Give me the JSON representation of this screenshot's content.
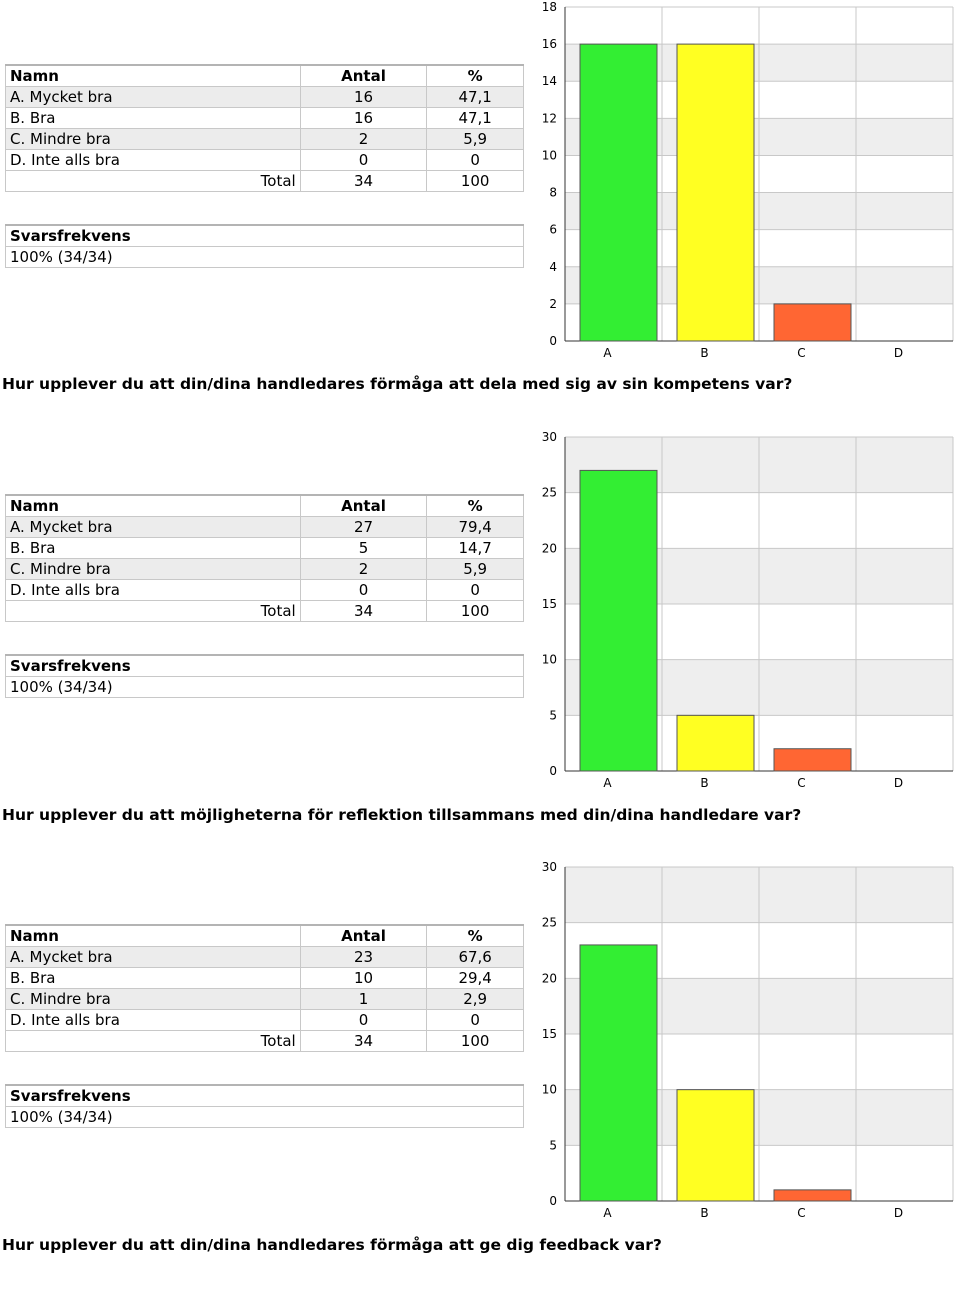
{
  "headers": {
    "name": "Namn",
    "count": "Antal",
    "percent": "%"
  },
  "total_label": "Total",
  "freq_label": "Svarsfrekvens",
  "blocks": [
    {
      "rows": [
        {
          "name": "A. Mycket bra",
          "count": "16",
          "percent": "47,1"
        },
        {
          "name": "B. Bra",
          "count": "16",
          "percent": "47,1"
        },
        {
          "name": "C. Mindre bra",
          "count": "2",
          "percent": "5,9"
        },
        {
          "name": "D. Inte alls bra",
          "count": "0",
          "percent": "0"
        }
      ],
      "total": {
        "count": "34",
        "percent": "100"
      },
      "freq_value": "100% (34/34)",
      "question": "Hur upplever du att din/dina handledares förmåga att dela med sig av sin kompetens var?"
    },
    {
      "rows": [
        {
          "name": "A. Mycket bra",
          "count": "27",
          "percent": "79,4"
        },
        {
          "name": "B. Bra",
          "count": "5",
          "percent": "14,7"
        },
        {
          "name": "C. Mindre bra",
          "count": "2",
          "percent": "5,9"
        },
        {
          "name": "D. Inte alls bra",
          "count": "0",
          "percent": "0"
        }
      ],
      "total": {
        "count": "34",
        "percent": "100"
      },
      "freq_value": "100% (34/34)",
      "question": "Hur upplever du att möjligheterna för reflektion tillsammans med din/dina handledare var?"
    },
    {
      "rows": [
        {
          "name": "A. Mycket bra",
          "count": "23",
          "percent": "67,6"
        },
        {
          "name": "B. Bra",
          "count": "10",
          "percent": "29,4"
        },
        {
          "name": "C. Mindre bra",
          "count": "1",
          "percent": "2,9"
        },
        {
          "name": "D. Inte alls bra",
          "count": "0",
          "percent": "0"
        }
      ],
      "total": {
        "count": "34",
        "percent": "100"
      },
      "freq_value": "100% (34/34)",
      "question": "Hur upplever du att din/dina handledares förmåga att ge dig feedback var?"
    }
  ],
  "colors": {
    "A": "#33ee33",
    "B": "#ffff22",
    "C": "#ff6633",
    "D": "#ffffff"
  },
  "chart_data": [
    {
      "type": "bar",
      "categories": [
        "A",
        "B",
        "C",
        "D"
      ],
      "values": [
        16,
        16,
        2,
        0
      ],
      "ylim": [
        0,
        18
      ],
      "yticks": [
        0,
        2,
        4,
        6,
        8,
        10,
        12,
        14,
        16,
        18
      ],
      "grid": true,
      "legend": "none"
    },
    {
      "type": "bar",
      "categories": [
        "A",
        "B",
        "C",
        "D"
      ],
      "values": [
        27,
        5,
        2,
        0
      ],
      "ylim": [
        0,
        30
      ],
      "yticks": [
        0,
        5,
        10,
        15,
        20,
        25,
        30
      ],
      "grid": true,
      "legend": "none"
    },
    {
      "type": "bar",
      "categories": [
        "A",
        "B",
        "C",
        "D"
      ],
      "values": [
        23,
        10,
        1,
        0
      ],
      "ylim": [
        0,
        30
      ],
      "yticks": [
        0,
        5,
        10,
        15,
        20,
        25,
        30
      ],
      "grid": true,
      "legend": "none"
    }
  ]
}
